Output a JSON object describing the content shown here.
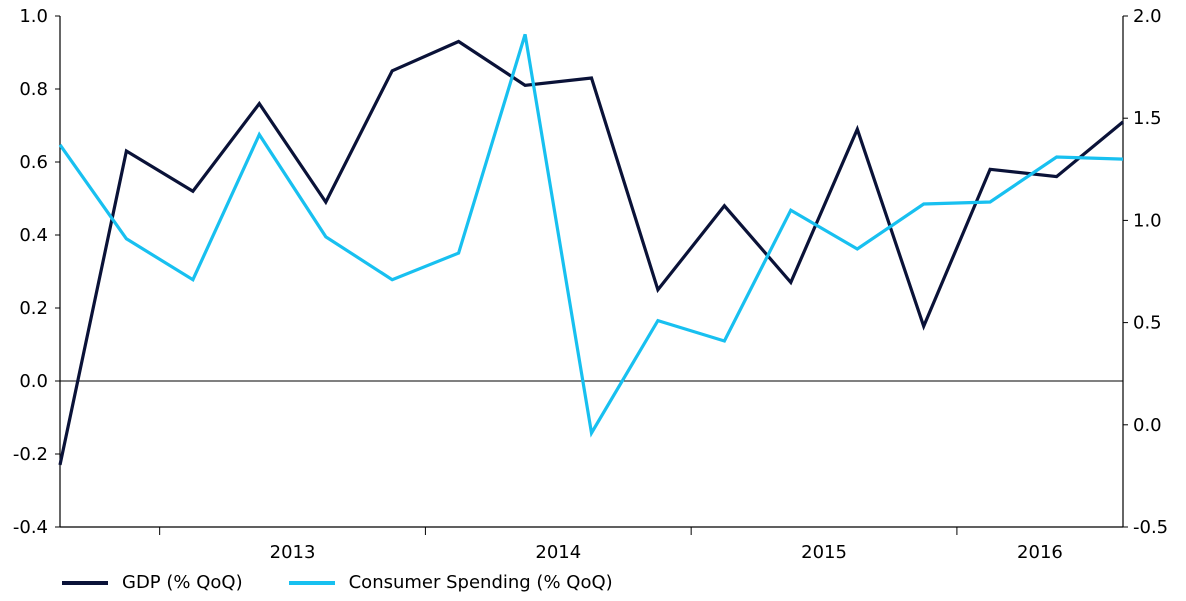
{
  "chart_data": {
    "type": "line",
    "x": [
      "2012Q3",
      "2012Q4",
      "2013Q1",
      "2013Q2",
      "2013Q3",
      "2013Q4",
      "2014Q1",
      "2014Q2",
      "2014Q3",
      "2014Q4",
      "2015Q1",
      "2015Q2",
      "2015Q3",
      "2015Q4",
      "2016Q1",
      "2016Q2",
      "2016Q3"
    ],
    "x_tick_labels": [
      "2013",
      "2014",
      "2015",
      "2016"
    ],
    "series": [
      {
        "name": "GDP (% QoQ)",
        "axis": "left",
        "color": "#0a1238",
        "values": [
          -0.23,
          0.63,
          0.52,
          0.76,
          0.49,
          0.85,
          0.93,
          0.81,
          0.83,
          0.25,
          0.48,
          0.27,
          0.69,
          0.15,
          0.58,
          0.56,
          0.71
        ]
      },
      {
        "name": "Consumer Spending (% QoQ)",
        "axis": "right",
        "color": "#18c0f0",
        "values": [
          1.37,
          0.91,
          0.71,
          1.42,
          0.92,
          0.71,
          0.84,
          1.91,
          -0.04,
          0.51,
          0.41,
          1.05,
          0.86,
          1.08,
          1.09,
          1.31,
          1.3
        ]
      }
    ],
    "y_left": {
      "ylim": [
        -0.4,
        1.0
      ],
      "ticks": [
        "-0.4",
        "-0.2",
        "0.0",
        "0.2",
        "0.4",
        "0.6",
        "0.8",
        "1.0"
      ]
    },
    "y_right": {
      "ylim": [
        -0.5,
        2.0
      ],
      "ticks": [
        "-0.5",
        "0.0",
        "0.5",
        "1.0",
        "1.5",
        "2.0"
      ]
    },
    "zero_line": true,
    "grid": false,
    "legend_position": "bottom-left"
  },
  "legend": {
    "gdp_label": "GDP (% QoQ)",
    "consumer_label": "Consumer Spending (% QoQ)",
    "gdp_color": "#0a1238",
    "consumer_color": "#18c0f0"
  }
}
